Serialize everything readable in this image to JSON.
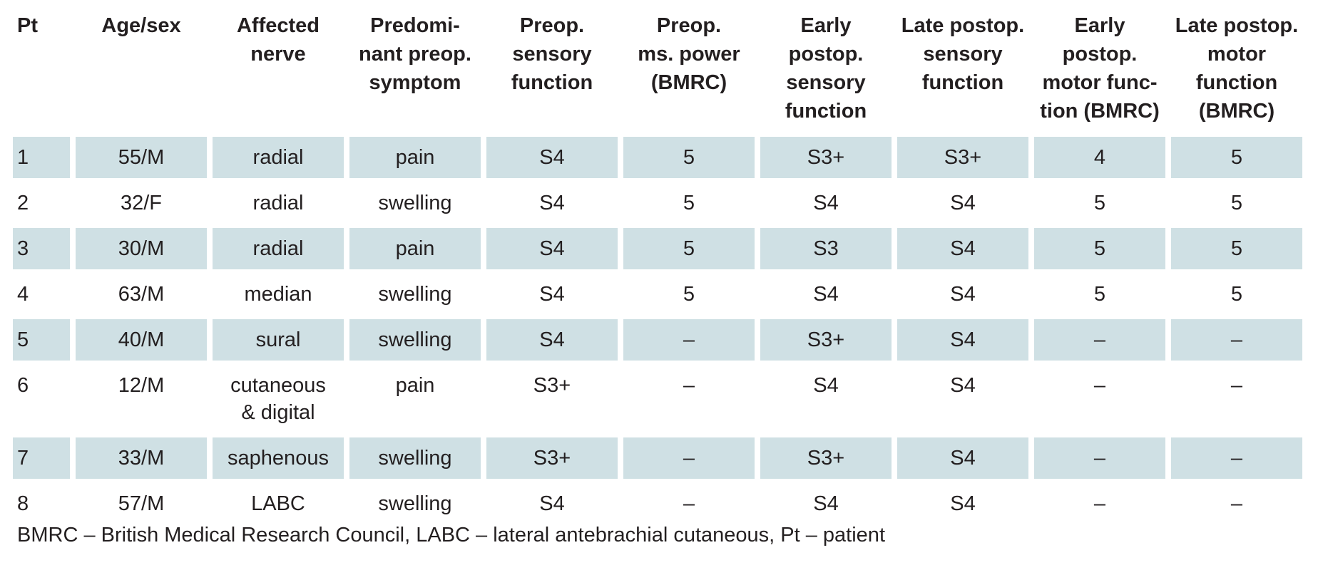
{
  "table": {
    "headers": [
      "Pt",
      "Age/sex",
      "Affected nerve",
      "Predomi-nant preop. symptom",
      "Preop. sensory function",
      "Preop. ms. power (BMRC)",
      "Early postop. sensory function",
      "Late postop. sensory function",
      "Early postop. motor func-tion (BMRC)",
      "Late postop. motor function (BMRC)"
    ],
    "header_lines": [
      [
        "Pt"
      ],
      [
        "Age/sex"
      ],
      [
        "Affected",
        "nerve"
      ],
      [
        "Predomi-",
        "nant preop.",
        "symptom"
      ],
      [
        "Preop.",
        "sensory",
        "function"
      ],
      [
        "Preop.",
        "ms. power",
        "(BMRC)"
      ],
      [
        "Early",
        "postop.",
        "sensory",
        "function"
      ],
      [
        "Late postop.",
        "sensory",
        "function"
      ],
      [
        "Early",
        "postop.",
        "motor func-",
        "tion (BMRC)"
      ],
      [
        "Late postop.",
        "motor",
        "function",
        "(BMRC)"
      ]
    ],
    "rows": [
      [
        "1",
        "55/M",
        "radial",
        "pain",
        "S4",
        "5",
        "S3+",
        "S3+",
        "4",
        "5"
      ],
      [
        "2",
        "32/F",
        "radial",
        "swelling",
        "S4",
        "5",
        "S4",
        "S4",
        "5",
        "5"
      ],
      [
        "3",
        "30/M",
        "radial",
        "pain",
        "S4",
        "5",
        "S3",
        "S4",
        "5",
        "5"
      ],
      [
        "4",
        "63/M",
        "median",
        "swelling",
        "S4",
        "5",
        "S4",
        "S4",
        "5",
        "5"
      ],
      [
        "5",
        "40/M",
        "sural",
        "swelling",
        "S4",
        "–",
        "S3+",
        "S4",
        "–",
        "–"
      ],
      [
        "6",
        "12/M",
        "cutaneous & digital",
        "pain",
        "S3+",
        "–",
        "S4",
        "S4",
        "–",
        "–"
      ],
      [
        "7",
        "33/M",
        "saphenous",
        "swelling",
        "S3+",
        "–",
        "S3+",
        "S4",
        "–",
        "–"
      ],
      [
        "8",
        "57/M",
        "LABC",
        "swelling",
        "S4",
        "–",
        "S4",
        "S4",
        "–",
        "–"
      ]
    ],
    "row6_nerve_lines": [
      "cutaneous",
      "& digital"
    ]
  },
  "footnote": "BMRC – British Medical Research Council, LABC – lateral antebrachial cutaneous, Pt – patient",
  "colors": {
    "shaded_row": "#cfe0e4",
    "text": "#231f20",
    "background": "#ffffff"
  }
}
